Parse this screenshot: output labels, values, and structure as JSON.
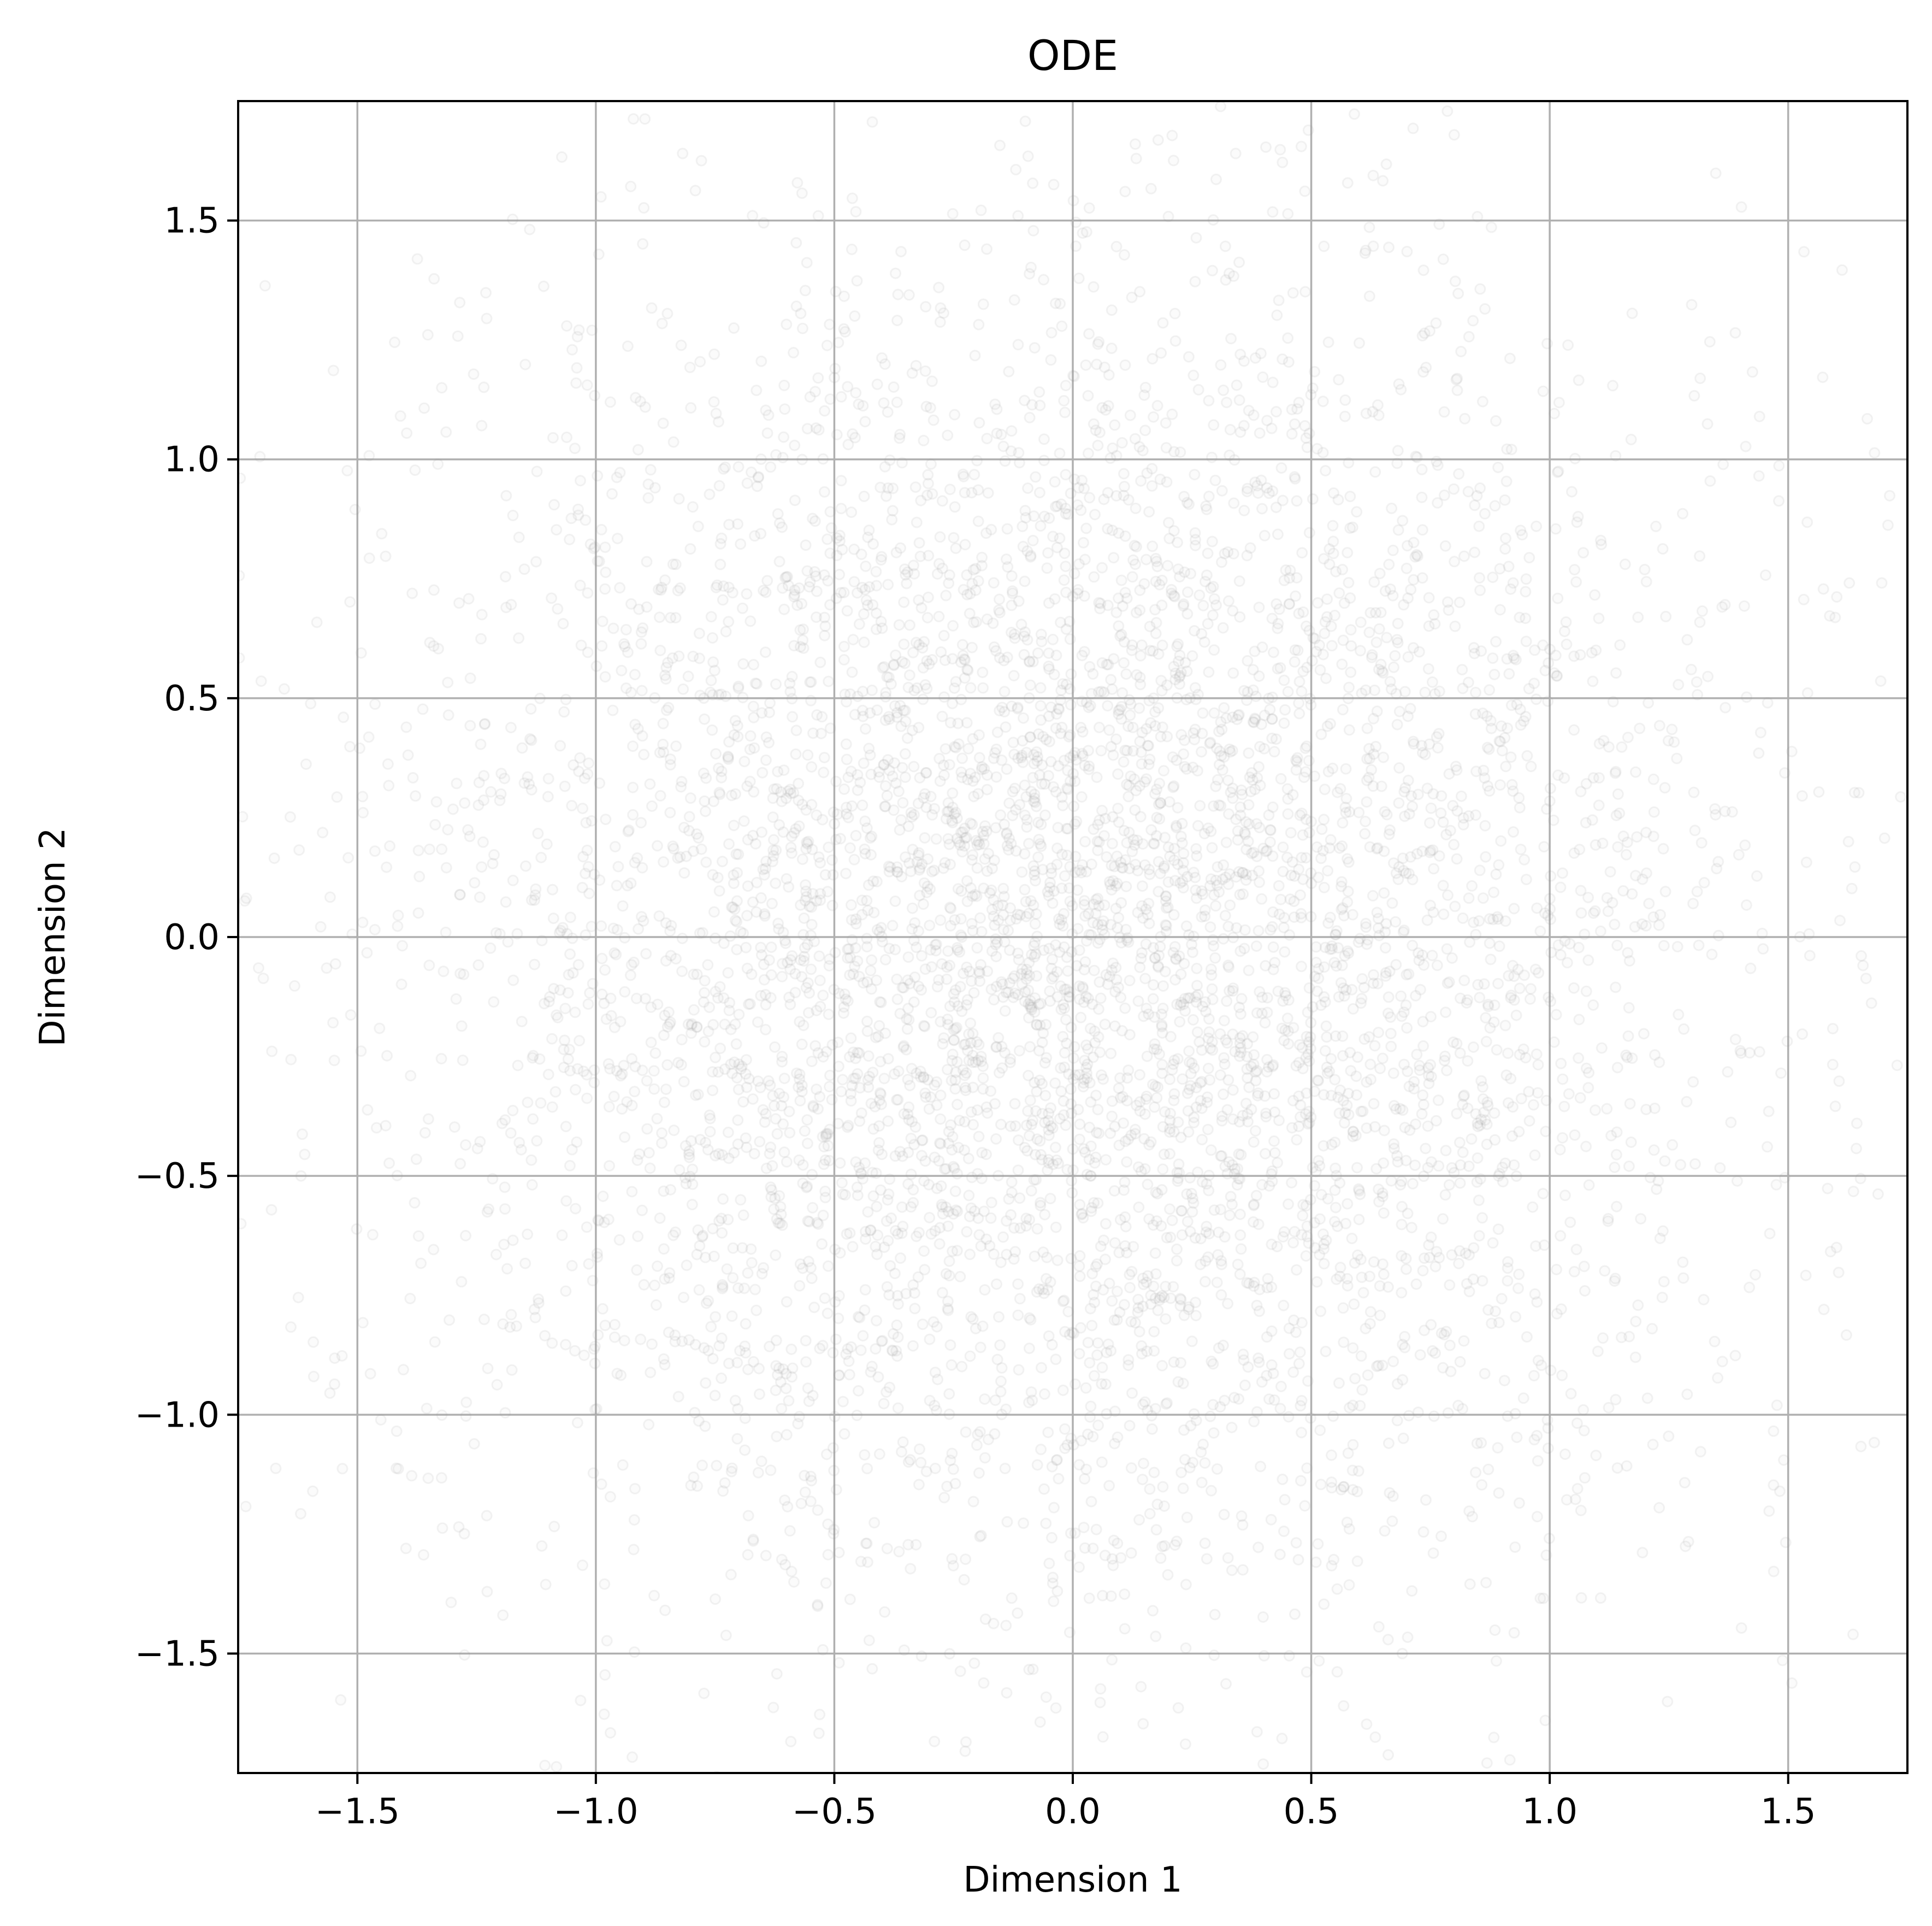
{
  "chart_data": {
    "type": "scatter",
    "title": "ODE",
    "xlabel": "Dimension 1",
    "ylabel": "Dimension 2",
    "xlim": [
      -1.75,
      1.75
    ],
    "ylim": [
      -1.75,
      1.75
    ],
    "xticks": [
      -1.5,
      -1.0,
      -0.5,
      0.0,
      0.5,
      1.0,
      1.5
    ],
    "yticks": [
      -1.5,
      -1.0,
      -0.5,
      0.0,
      0.5,
      1.0,
      1.5
    ],
    "xtick_labels": [
      "−1.5",
      "−1.0",
      "−0.5",
      "0.0",
      "0.5",
      "1.0",
      "1.5"
    ],
    "ytick_labels": [
      "−1.5",
      "−1.0",
      "−0.5",
      "0.0",
      "0.5",
      "1.0",
      "1.5"
    ],
    "grid": true,
    "legend": "none",
    "marker": "hollow-circle",
    "marker_color": "#9a9a9a",
    "marker_alpha": 0.12,
    "grid_color": "#b0b0b0",
    "distribution": {
      "kind": "approximately isotropic 2-D Gaussian cloud, centered near the origin, shown clipped to the axes range",
      "center": [
        0.0,
        0.0
      ],
      "std": [
        0.7,
        0.7
      ],
      "n_points": 6000
    }
  }
}
